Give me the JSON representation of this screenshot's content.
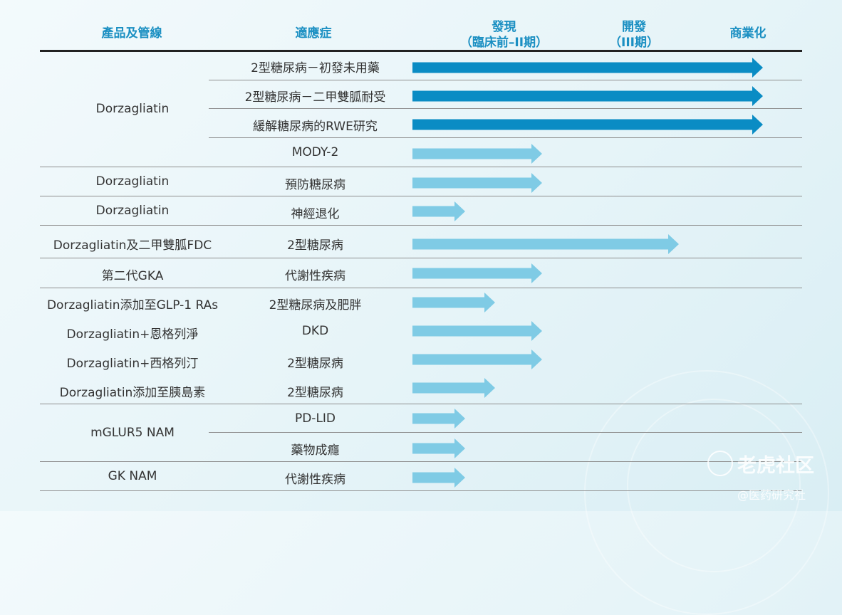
{
  "header": {
    "product": "產品及管線",
    "indication": "適應症",
    "discovery_line1": "發現",
    "discovery_line2": "（臨床前–II期）",
    "development_line1": "開發",
    "development_line2": "（III期）",
    "commercial": "商業化"
  },
  "rows": [
    {
      "product": "",
      "indication": "2型糖尿病－初發未用藥",
      "stage": 4,
      "color": "#0a8cc4"
    },
    {
      "product": "",
      "indication": "2型糖尿病－二甲雙胍耐受",
      "stage": 4,
      "color": "#0a8cc4"
    },
    {
      "product": "Dorzagliatin",
      "indication": "緩解糖尿病的RWE研究",
      "stage": 4,
      "color": "#0a8cc4"
    },
    {
      "product": "",
      "indication": "MODY-2",
      "stage": 2,
      "color": "#7fcbe5"
    },
    {
      "product": "Dorzagliatin",
      "indication": "預防糖尿病",
      "stage": 2,
      "color": "#7fcbe5"
    },
    {
      "product": "Dorzagliatin",
      "indication": "神經退化",
      "stage": 1,
      "color": "#7fcbe5"
    },
    {
      "product": "Dorzagliatin及二甲雙胍FDC",
      "indication": "2型糖尿病",
      "stage": 3,
      "color": "#7fcbe5"
    },
    {
      "product": "第二代GKA",
      "indication": "代謝性疾病",
      "stage": 2,
      "color": "#7fcbe5"
    },
    {
      "product": "Dorzagliatin添加至GLP-1 RAs",
      "indication": "2型糖尿病及肥胖",
      "stage": 1.5,
      "color": "#7fcbe5"
    },
    {
      "product": "Dorzagliatin+恩格列淨",
      "indication": "DKD",
      "stage": 2,
      "color": "#7fcbe5"
    },
    {
      "product": "Dorzagliatin+西格列汀",
      "indication": "2型糖尿病",
      "stage": 2,
      "color": "#7fcbe5"
    },
    {
      "product": "Dorzagliatin添加至胰島素",
      "indication": "2型糖尿病",
      "stage": 1.5,
      "color": "#7fcbe5"
    },
    {
      "product": "",
      "indication": "PD-LID",
      "stage": 1,
      "color": "#7fcbe5"
    },
    {
      "product": "mGLUR5 NAM",
      "indication": "藥物成癮",
      "stage": 1,
      "color": "#7fcbe5"
    },
    {
      "product": "GK NAM",
      "indication": "代謝性疾病",
      "stage": 1,
      "color": "#7fcbe5"
    }
  ],
  "watermark": {
    "brand": "老虎社区",
    "handle": "@医药研究社"
  }
}
